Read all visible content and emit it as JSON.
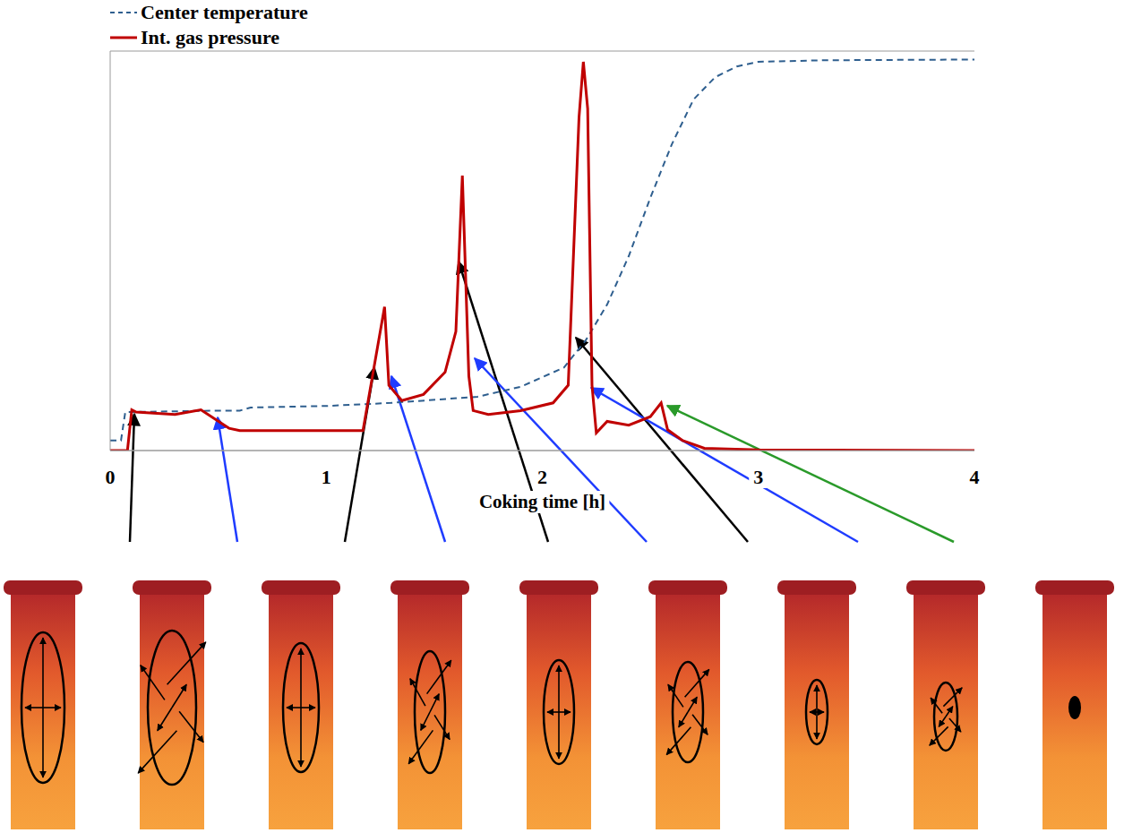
{
  "chart_data": {
    "type": "line",
    "x_label": "Coking time [h]",
    "xlim": [
      0,
      4
    ],
    "xticks": [
      0,
      1,
      2,
      3,
      4
    ],
    "ylim": [
      0,
      5.2
    ],
    "yticks": [
      0,
      1,
      2,
      3,
      4,
      5
    ],
    "grid": true,
    "tick_labels": "x",
    "legend": "top-left",
    "series": [
      {
        "name": "Center temperature",
        "color": "#2f5f8f",
        "line_style": "dashed",
        "x": [
          0,
          0.05,
          0.07,
          0.5,
          0.6,
          0.65,
          1.0,
          1.3,
          1.7,
          1.9,
          2.1,
          2.2,
          2.3,
          2.4,
          2.5,
          2.6,
          2.7,
          2.8,
          2.9,
          3.0,
          3.3,
          4.0
        ],
        "values": [
          0.13,
          0.13,
          0.5,
          0.52,
          0.52,
          0.56,
          0.58,
          0.62,
          0.7,
          0.83,
          1.08,
          1.43,
          1.9,
          2.53,
          3.29,
          3.99,
          4.57,
          4.86,
          5.0,
          5.06,
          5.08,
          5.09
        ]
      },
      {
        "name": "Int. gas pressure",
        "color": "#c00000",
        "line_style": "solid",
        "x": [
          0,
          0.08,
          0.1,
          0.12,
          0.3,
          0.42,
          0.55,
          0.6,
          1.17,
          1.27,
          1.29,
          1.35,
          1.45,
          1.55,
          1.6,
          1.63,
          1.66,
          1.68,
          1.75,
          1.9,
          2.05,
          2.12,
          2.17,
          2.19,
          2.21,
          2.23,
          2.25,
          2.3,
          2.4,
          2.5,
          2.55,
          2.58,
          2.65,
          2.75,
          3.0,
          4.0
        ],
        "values": [
          0,
          0,
          0.53,
          0.5,
          0.47,
          0.53,
          0.29,
          0.26,
          0.26,
          1.87,
          0.85,
          0.65,
          0.73,
          1.02,
          1.55,
          3.58,
          0.97,
          0.52,
          0.47,
          0.52,
          0.62,
          0.85,
          4.34,
          5.06,
          4.45,
          0.85,
          0.23,
          0.38,
          0.33,
          0.44,
          0.62,
          0.27,
          0.13,
          0.03,
          0.01,
          0
        ]
      }
    ]
  }
}
